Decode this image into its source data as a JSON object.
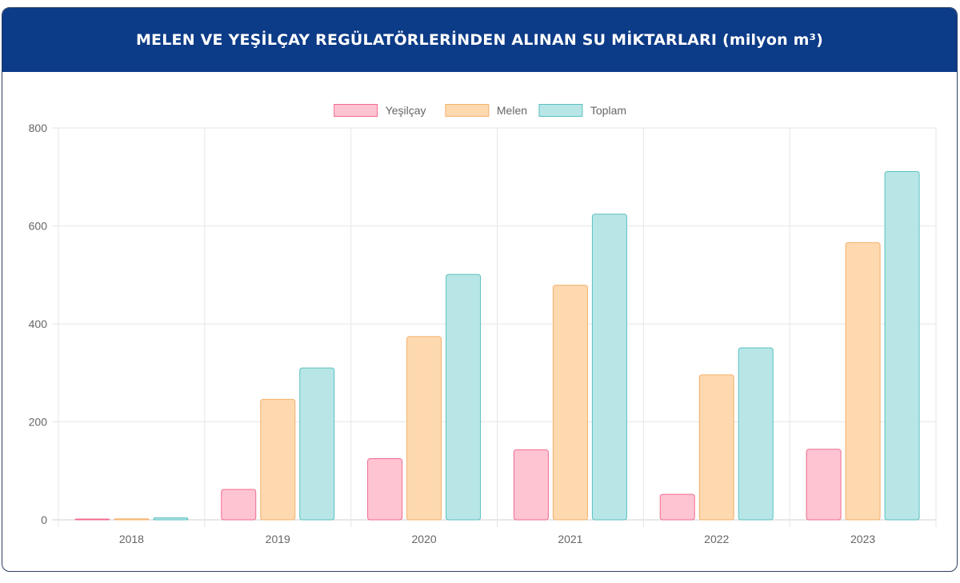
{
  "header": {
    "title": "MELEN VE YEŞİLÇAY REGÜLATÖRLERİNDEN ALINAN SU MİKTARLARI (milyon m³)"
  },
  "colors": {
    "header_bg": "#0c3b87",
    "Yeşilçay": {
      "fill": "#ffc4d2",
      "stroke": "#f06b8f"
    },
    "Melen": {
      "fill": "#fed9b0",
      "stroke": "#f4b06a"
    },
    "Toplam": {
      "fill": "#b8e6e6",
      "stroke": "#5cc0c0"
    }
  },
  "chart_data": {
    "type": "bar",
    "title": "",
    "xlabel": "",
    "ylabel": "",
    "categories": [
      "2018",
      "2019",
      "2020",
      "2021",
      "2022",
      "2023"
    ],
    "series": [
      {
        "name": "Yeşilçay",
        "values": [
          1,
          62,
          125,
          143,
          52,
          144
        ]
      },
      {
        "name": "Melen",
        "values": [
          2,
          246,
          374,
          479,
          296,
          566
        ]
      },
      {
        "name": "Toplam",
        "values": [
          4,
          310,
          501,
          624,
          351,
          711
        ]
      }
    ],
    "ylim": [
      0,
      800
    ],
    "yticks": [
      "0",
      "200",
      "400",
      "600",
      "800"
    ],
    "grid": true,
    "legend_position": "top-center"
  }
}
